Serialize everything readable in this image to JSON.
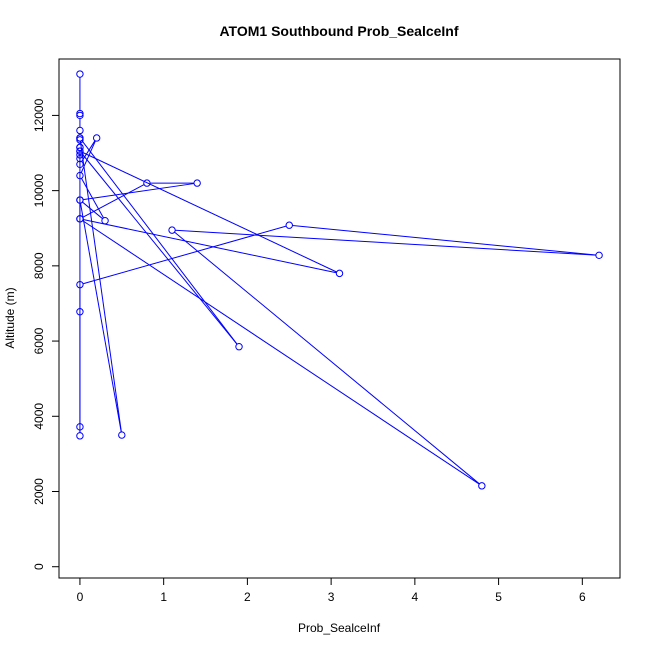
{
  "chart_data": {
    "type": "line",
    "title": "ATOM1 Southbound Prob_SealceInf",
    "xlabel": "Prob_SealceInf",
    "ylabel": "Altitude (m)",
    "xlim": [
      -0.25,
      6.45
    ],
    "ylim": [
      -300,
      13500
    ],
    "xticks": [
      0,
      1,
      2,
      3,
      4,
      5,
      6
    ],
    "yticks": [
      0,
      2000,
      4000,
      6000,
      8000,
      10000,
      12000
    ],
    "grid": false,
    "markers": "open-circle",
    "series_color": "#0000ff",
    "series": [
      {
        "x": [
          0,
          0,
          0,
          0,
          0,
          0,
          0,
          0,
          0,
          0,
          0,
          0.2,
          0,
          0.3,
          0,
          0,
          0.8,
          1.4,
          0,
          0.5,
          0,
          1.9,
          0,
          3.1,
          0,
          4.8,
          1.1,
          6.2,
          2.5,
          0,
          0,
          0,
          0,
          0
        ],
        "y": [
          13100,
          12050,
          12000,
          11600,
          11400,
          11350,
          11150,
          11050,
          10950,
          10850,
          10700,
          11400,
          10400,
          9200,
          9750,
          9250,
          10200,
          10200,
          9750,
          3500,
          11400,
          5850,
          11050,
          7800,
          9250,
          2150,
          8950,
          8280,
          9080,
          7500,
          6780,
          3720,
          3480,
          11150
        ]
      }
    ]
  }
}
